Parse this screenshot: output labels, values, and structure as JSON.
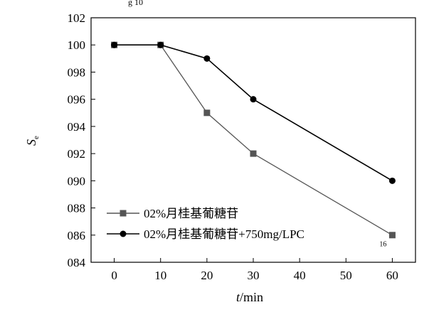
{
  "top_caption": "g 10",
  "chart_data": {
    "type": "line",
    "xlabel_italic": "t",
    "xlabel_unit": "/min",
    "ylabel_italic": "S",
    "ylabel_sub": "e",
    "x": [
      0,
      10,
      20,
      30,
      40,
      50,
      60
    ],
    "xlim": [
      -5,
      65
    ],
    "ylim": [
      84,
      102
    ],
    "x_ticks": [
      {
        "value": 0,
        "label": "0"
      },
      {
        "value": 10,
        "label": "10"
      },
      {
        "value": 20,
        "label": "20"
      },
      {
        "value": 30,
        "label": "30"
      },
      {
        "value": 40,
        "label": "40"
      },
      {
        "value": 50,
        "label": "50"
      },
      {
        "value": 60,
        "label": "60"
      }
    ],
    "y_ticks": [
      {
        "value": 84,
        "label": "084"
      },
      {
        "value": 86,
        "label": "086"
      },
      {
        "value": 88,
        "label": "088"
      },
      {
        "value": 90,
        "label": "090"
      },
      {
        "value": 92,
        "label": "092"
      },
      {
        "value": 94,
        "label": "094"
      },
      {
        "value": 96,
        "label": "096"
      },
      {
        "value": 98,
        "label": "098"
      },
      {
        "value": 100,
        "label": "100"
      },
      {
        "value": 102,
        "label": "102"
      }
    ],
    "grid": false,
    "legend_position": "bottom-left",
    "series": [
      {
        "name": "02%月桂基葡糖苷",
        "marker": "square",
        "color": "#555555",
        "points": [
          {
            "x": 0,
            "y": 100
          },
          {
            "x": 10,
            "y": 100
          },
          {
            "x": 20,
            "y": 95
          },
          {
            "x": 30,
            "y": 92
          },
          {
            "x": 60,
            "y": 86
          }
        ]
      },
      {
        "name": "02%月桂基葡糖苷+750mg/LPC",
        "marker": "circle",
        "color": "#000000",
        "points": [
          {
            "x": 0,
            "y": 100
          },
          {
            "x": 10,
            "y": 100
          },
          {
            "x": 20,
            "y": 99
          },
          {
            "x": 30,
            "y": 96
          },
          {
            "x": 60,
            "y": 90
          }
        ]
      }
    ],
    "annotations": [
      {
        "text": "16",
        "x": 58,
        "y": 85.6
      }
    ]
  }
}
